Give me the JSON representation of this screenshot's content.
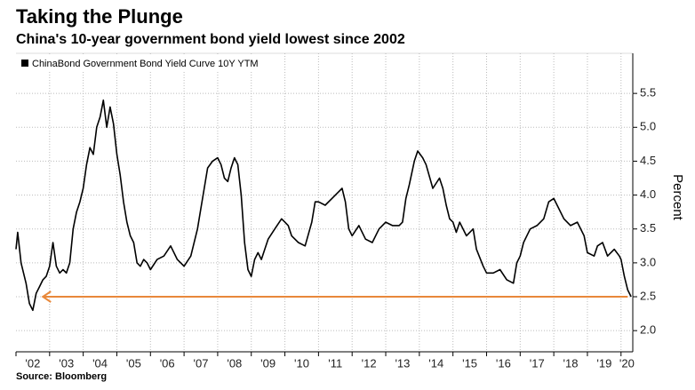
{
  "chart_data": {
    "type": "line",
    "title": "Taking the Plunge",
    "subtitle": "China's 10-year government bond yield lowest since 2002",
    "y_axis_label": "Percent",
    "source": "Source: Bloomberg",
    "legend": "top-left",
    "grid": true,
    "xlim": [
      2002.0,
      2020.35
    ],
    "xticks": [
      {
        "value": 2002,
        "label": "'02"
      },
      {
        "value": 2003,
        "label": "'03"
      },
      {
        "value": 2004,
        "label": "'04"
      },
      {
        "value": 2005,
        "label": "'05"
      },
      {
        "value": 2006,
        "label": "'06"
      },
      {
        "value": 2007,
        "label": "'07"
      },
      {
        "value": 2008,
        "label": "'08"
      },
      {
        "value": 2009,
        "label": "'09"
      },
      {
        "value": 2010,
        "label": "'10"
      },
      {
        "value": 2011,
        "label": "'11"
      },
      {
        "value": 2012,
        "label": "'12"
      },
      {
        "value": 2013,
        "label": "'13"
      },
      {
        "value": 2014,
        "label": "'14"
      },
      {
        "value": 2015,
        "label": "'15"
      },
      {
        "value": 2016,
        "label": "'16"
      },
      {
        "value": 2017,
        "label": "'17"
      },
      {
        "value": 2018,
        "label": "'18"
      },
      {
        "value": 2019,
        "label": "'19"
      },
      {
        "value": 2020,
        "label": "'20"
      }
    ],
    "ylim": [
      1.74,
      6.0
    ],
    "yticks": [
      {
        "value": 2.0,
        "label": "2.0"
      },
      2.5,
      {
        "value": 3.0,
        "label": "3.0"
      },
      3.5,
      {
        "value": 4.0,
        "label": "4.0"
      },
      4.5,
      {
        "value": 5.0,
        "label": "5.0"
      },
      5.5
    ],
    "x": [
      2002.0,
      2002.05,
      2002.15,
      2002.3,
      2002.4,
      2002.5,
      2002.6,
      2002.7,
      2002.8,
      2002.9,
      2003.0,
      2003.1,
      2003.2,
      2003.3,
      2003.4,
      2003.5,
      2003.6,
      2003.7,
      2003.8,
      2003.9,
      2004.0,
      2004.1,
      2004.2,
      2004.3,
      2004.4,
      2004.5,
      2004.6,
      2004.7,
      2004.8,
      2004.9,
      2005.0,
      2005.1,
      2005.2,
      2005.3,
      2005.4,
      2005.5,
      2005.6,
      2005.7,
      2005.8,
      2005.9,
      2006.0,
      2006.2,
      2006.4,
      2006.6,
      2006.8,
      2007.0,
      2007.2,
      2007.4,
      2007.5,
      2007.6,
      2007.7,
      2007.85,
      2008.0,
      2008.1,
      2008.2,
      2008.3,
      2008.4,
      2008.5,
      2008.6,
      2008.7,
      2008.8,
      2008.9,
      2009.0,
      2009.1,
      2009.2,
      2009.3,
      2009.4,
      2009.5,
      2009.7,
      2009.9,
      2010.0,
      2010.1,
      2010.2,
      2010.4,
      2010.6,
      2010.8,
      2010.9,
      2011.0,
      2011.2,
      2011.4,
      2011.6,
      2011.7,
      2011.8,
      2011.9,
      2012.0,
      2012.2,
      2012.4,
      2012.6,
      2012.8,
      2013.0,
      2013.2,
      2013.4,
      2013.5,
      2013.6,
      2013.7,
      2013.85,
      2013.95,
      2014.1,
      2014.2,
      2014.4,
      2014.6,
      2014.7,
      2014.8,
      2014.9,
      2015.0,
      2015.1,
      2015.2,
      2015.4,
      2015.6,
      2015.7,
      2015.9,
      2016.0,
      2016.2,
      2016.4,
      2016.6,
      2016.8,
      2016.9,
      2017.0,
      2017.1,
      2017.3,
      2017.5,
      2017.7,
      2017.85,
      2018.0,
      2018.1,
      2018.3,
      2018.5,
      2018.7,
      2018.9,
      2019.0,
      2019.2,
      2019.3,
      2019.45,
      2019.6,
      2019.8,
      2019.95,
      2020.0,
      2020.1,
      2020.2,
      2020.3
    ],
    "series": [
      {
        "name": "ChinaBond Government Bond Yield Curve 10Y YTM",
        "color": "#000000",
        "values": [
          3.2,
          3.45,
          3.0,
          2.7,
          2.4,
          2.3,
          2.55,
          2.65,
          2.75,
          2.8,
          2.95,
          3.3,
          2.95,
          2.85,
          2.9,
          2.85,
          3.0,
          3.5,
          3.75,
          3.9,
          4.1,
          4.45,
          4.7,
          4.6,
          5.0,
          5.15,
          5.4,
          5.0,
          5.3,
          5.05,
          4.6,
          4.3,
          3.9,
          3.6,
          3.4,
          3.3,
          3.0,
          2.95,
          3.05,
          3.0,
          2.9,
          3.05,
          3.1,
          3.25,
          3.05,
          2.95,
          3.1,
          3.5,
          3.8,
          4.1,
          4.4,
          4.5,
          4.55,
          4.45,
          4.25,
          4.2,
          4.4,
          4.55,
          4.45,
          4.0,
          3.3,
          2.9,
          2.8,
          3.05,
          3.15,
          3.05,
          3.2,
          3.35,
          3.5,
          3.65,
          3.6,
          3.55,
          3.4,
          3.3,
          3.25,
          3.6,
          3.9,
          3.9,
          3.85,
          3.95,
          4.05,
          4.1,
          3.9,
          3.5,
          3.4,
          3.55,
          3.35,
          3.3,
          3.5,
          3.6,
          3.55,
          3.55,
          3.6,
          3.95,
          4.15,
          4.5,
          4.65,
          4.55,
          4.45,
          4.1,
          4.25,
          4.1,
          3.85,
          3.65,
          3.6,
          3.45,
          3.6,
          3.4,
          3.5,
          3.2,
          2.95,
          2.85,
          2.85,
          2.9,
          2.75,
          2.7,
          3.0,
          3.1,
          3.3,
          3.5,
          3.55,
          3.65,
          3.9,
          3.95,
          3.85,
          3.65,
          3.55,
          3.6,
          3.4,
          3.15,
          3.1,
          3.25,
          3.3,
          3.1,
          3.2,
          3.1,
          3.05,
          2.8,
          2.6,
          2.5
        ]
      }
    ],
    "annotation_line": {
      "y": 2.5,
      "x": [
        2002.8,
        2020.2
      ],
      "color": "#e8883a"
    }
  }
}
